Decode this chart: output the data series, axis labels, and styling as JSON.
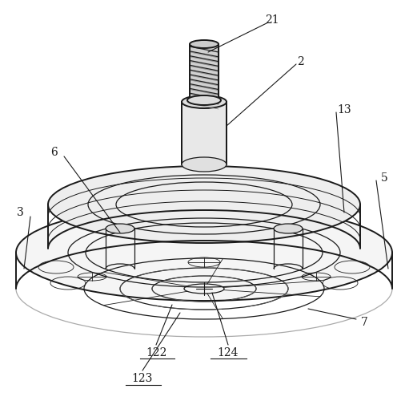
{
  "bg_color": "#ffffff",
  "line_color": "#1a1a1a",
  "label_color": "#1a1a1a",
  "figsize": [
    5.11,
    5.0
  ],
  "dpi": 100
}
